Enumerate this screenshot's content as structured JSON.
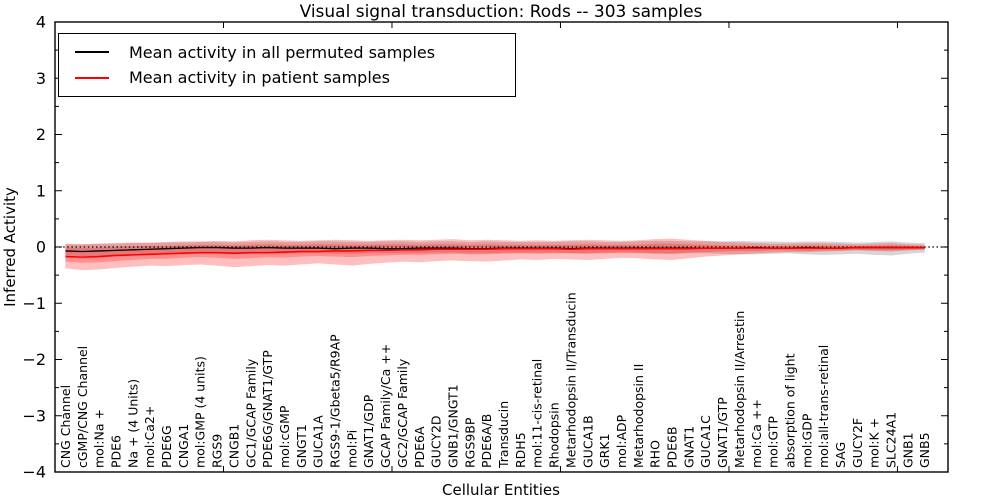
{
  "figure": {
    "title": "Visual signal transduction: Rods -- 303 samples",
    "xlabel": "Cellular Entities",
    "ylabel": "Inferred Activity",
    "background": "#ffffff",
    "frame_color": "#000000"
  },
  "legend": {
    "items": [
      {
        "label": "Mean activity in all permuted samples",
        "color": "#000000"
      },
      {
        "label": "Mean activity in patient samples",
        "color": "#ff0000"
      }
    ]
  },
  "chart_data": {
    "type": "line",
    "title": "Visual signal transduction: Rods -- 303 samples",
    "xlabel": "Cellular Entities",
    "ylabel": "Inferred Activity",
    "ylim": [
      -4,
      4
    ],
    "ytick_major_step": 1,
    "ytick_minor_step": 0.5,
    "x_range": [
      0,
      53
    ],
    "xticks": [
      0,
      10,
      20,
      30,
      40,
      50
    ],
    "grid": false,
    "legend_position": "upper left",
    "zero_line": {
      "y": 0,
      "style": "dotted",
      "color": "#000000"
    },
    "categories": [
      "CNG Channel",
      "cGMP/CNG Channel",
      "mol:Na +",
      "PDE6",
      "Na + (4 Units)",
      "mol:Ca2+",
      "PDE6G",
      "CNGA1",
      "mol:GMP (4 units)",
      "RGS9",
      "CNGB1",
      "GC1/GCAP Family",
      "PDE6G/GNAT1/GTP",
      "mol:cGMP",
      "GNGT1",
      "GUCA1A",
      "RGS9-1/Gbeta5/R9AP",
      "mol:Pi",
      "GNAT1/GDP",
      "GCAP Family/Ca ++",
      "GC2/GCAP Family",
      "PDE6A",
      "GUCY2D",
      "GNB1/GNGT1",
      "RGS9BP",
      "PDE6A/B",
      "Transducin",
      "RDH5",
      "mol:11-cis-retinal",
      "Rhodopsin",
      "Metarhodopsin II/Transducin",
      "GUCA1B",
      "GRK1",
      "mol:ADP",
      "Metarhodopsin II",
      "RHO",
      "PDE6B",
      "GNAT1",
      "GUCA1C",
      "GNAT1/GTP",
      "Metarhodopsin II/Arrestin",
      "mol:Ca ++",
      "mol:GTP",
      "absorption of light",
      "mol:GDP",
      "mol:all-trans-retinal",
      "SAG",
      "GUCY2F",
      "mol:K +",
      "SLC24A1",
      "GNB1",
      "GNB5"
    ],
    "series": [
      {
        "name": "Mean activity in all permuted samples",
        "color": "#000000",
        "width": 1.3,
        "values": [
          -0.07,
          -0.08,
          -0.07,
          -0.06,
          -0.05,
          -0.04,
          -0.03,
          -0.02,
          -0.01,
          -0.01,
          -0.02,
          -0.02,
          -0.01,
          -0.02,
          -0.02,
          -0.02,
          -0.03,
          -0.02,
          -0.02,
          -0.03,
          -0.03,
          -0.02,
          -0.02,
          -0.02,
          -0.03,
          -0.03,
          -0.02,
          -0.02,
          -0.02,
          -0.02,
          -0.03,
          -0.02,
          -0.02,
          -0.02,
          -0.02,
          -0.02,
          -0.02,
          -0.02,
          -0.02,
          -0.02,
          -0.02,
          -0.01,
          -0.02,
          -0.02,
          -0.01,
          -0.02,
          -0.02,
          -0.01,
          -0.01,
          -0.01,
          -0.01,
          -0.01
        ]
      },
      {
        "name": "Mean activity in patient samples",
        "color": "#ff0000",
        "width": 1.6,
        "values": [
          -0.17,
          -0.18,
          -0.17,
          -0.15,
          -0.14,
          -0.13,
          -0.12,
          -0.11,
          -0.1,
          -0.1,
          -0.11,
          -0.1,
          -0.1,
          -0.09,
          -0.08,
          -0.08,
          -0.07,
          -0.07,
          -0.06,
          -0.06,
          -0.05,
          -0.05,
          -0.04,
          -0.04,
          -0.04,
          -0.04,
          -0.03,
          -0.03,
          -0.03,
          -0.03,
          -0.04,
          -0.03,
          -0.03,
          -0.03,
          -0.03,
          -0.03,
          -0.03,
          -0.03,
          -0.02,
          -0.02,
          -0.02,
          -0.02,
          -0.02,
          -0.02,
          -0.02,
          -0.02,
          -0.02,
          -0.01,
          -0.01,
          -0.01,
          -0.01,
          -0.01
        ]
      }
    ],
    "bands": [
      {
        "name": "permuted-spread",
        "color": "#999999",
        "opacity": 0.4,
        "upper": [
          0.05,
          0.05,
          0.06,
          0.06,
          0.07,
          0.07,
          0.08,
          0.08,
          0.09,
          0.09,
          0.08,
          0.09,
          0.1,
          0.09,
          0.09,
          0.1,
          0.1,
          0.09,
          0.09,
          0.1,
          0.1,
          0.09,
          0.1,
          0.1,
          0.09,
          0.1,
          0.09,
          0.09,
          0.09,
          0.09,
          0.1,
          0.1,
          0.09,
          0.09,
          0.1,
          0.11,
          0.11,
          0.1,
          0.1,
          0.1,
          0.11,
          0.1,
          0.1,
          0.09,
          0.1,
          0.1,
          0.09,
          0.08,
          0.09,
          0.1,
          0.08,
          0.07
        ],
        "lower": [
          -0.15,
          -0.16,
          -0.16,
          -0.15,
          -0.14,
          -0.13,
          -0.13,
          -0.12,
          -0.12,
          -0.12,
          -0.13,
          -0.12,
          -0.12,
          -0.12,
          -0.11,
          -0.11,
          -0.12,
          -0.12,
          -0.11,
          -0.11,
          -0.11,
          -0.11,
          -0.1,
          -0.1,
          -0.11,
          -0.11,
          -0.1,
          -0.1,
          -0.1,
          -0.1,
          -0.11,
          -0.11,
          -0.1,
          -0.1,
          -0.11,
          -0.12,
          -0.12,
          -0.11,
          -0.11,
          -0.12,
          -0.13,
          -0.13,
          -0.12,
          -0.11,
          -0.13,
          -0.14,
          -0.13,
          -0.12,
          -0.14,
          -0.15,
          -0.12,
          -0.1
        ]
      },
      {
        "name": "patient-spread-outer",
        "color": "#ff0000",
        "opacity": 0.25,
        "upper": [
          0.06,
          0.05,
          0.06,
          0.07,
          0.08,
          0.08,
          0.09,
          0.1,
          0.1,
          0.11,
          0.1,
          0.12,
          0.13,
          0.12,
          0.11,
          0.12,
          0.13,
          0.12,
          0.11,
          0.12,
          0.13,
          0.12,
          0.13,
          0.14,
          0.12,
          0.13,
          0.12,
          0.11,
          0.12,
          0.11,
          0.12,
          0.13,
          0.12,
          0.11,
          0.12,
          0.14,
          0.15,
          0.13,
          0.11,
          0.09,
          0.08,
          0.07,
          0.06,
          0.06,
          0.07,
          0.07,
          0.06,
          0.05,
          0.06,
          0.07,
          0.05,
          0.04
        ],
        "lower": [
          -0.38,
          -0.41,
          -0.4,
          -0.37,
          -0.35,
          -0.33,
          -0.34,
          -0.32,
          -0.31,
          -0.33,
          -0.36,
          -0.34,
          -0.32,
          -0.33,
          -0.31,
          -0.29,
          -0.31,
          -0.33,
          -0.3,
          -0.28,
          -0.26,
          -0.27,
          -0.25,
          -0.24,
          -0.25,
          -0.26,
          -0.24,
          -0.22,
          -0.23,
          -0.21,
          -0.22,
          -0.23,
          -0.21,
          -0.19,
          -0.2,
          -0.22,
          -0.23,
          -0.2,
          -0.17,
          -0.15,
          -0.13,
          -0.11,
          -0.1,
          -0.09,
          -0.09,
          -0.08,
          -0.07,
          -0.06,
          -0.07,
          -0.08,
          -0.06,
          -0.05
        ]
      },
      {
        "name": "patient-spread-inner",
        "color": "#ff0000",
        "opacity": 0.25,
        "upper": [
          -0.01,
          -0.02,
          -0.01,
          0.0,
          0.01,
          0.02,
          0.02,
          0.03,
          0.04,
          0.04,
          0.03,
          0.04,
          0.05,
          0.04,
          0.04,
          0.05,
          0.05,
          0.04,
          0.04,
          0.05,
          0.05,
          0.04,
          0.05,
          0.05,
          0.04,
          0.05,
          0.04,
          0.04,
          0.04,
          0.04,
          0.04,
          0.05,
          0.04,
          0.04,
          0.04,
          0.06,
          0.06,
          0.05,
          0.04,
          0.03,
          0.03,
          0.02,
          0.02,
          0.02,
          0.03,
          0.03,
          0.02,
          0.02,
          0.02,
          0.03,
          0.02,
          0.01
        ],
        "lower": [
          -0.26,
          -0.28,
          -0.27,
          -0.25,
          -0.23,
          -0.21,
          -0.21,
          -0.19,
          -0.18,
          -0.19,
          -0.21,
          -0.2,
          -0.18,
          -0.19,
          -0.17,
          -0.16,
          -0.17,
          -0.18,
          -0.16,
          -0.15,
          -0.14,
          -0.14,
          -0.13,
          -0.12,
          -0.13,
          -0.13,
          -0.12,
          -0.11,
          -0.12,
          -0.11,
          -0.11,
          -0.12,
          -0.11,
          -0.1,
          -0.1,
          -0.11,
          -0.12,
          -0.1,
          -0.09,
          -0.08,
          -0.07,
          -0.07,
          -0.06,
          -0.06,
          -0.07,
          -0.06,
          -0.06,
          -0.05,
          -0.06,
          -0.06,
          -0.05,
          -0.04
        ]
      }
    ]
  }
}
